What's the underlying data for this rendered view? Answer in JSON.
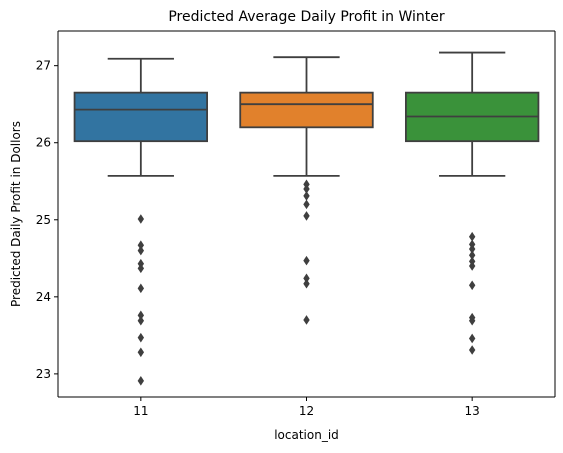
{
  "chart_data": {
    "type": "box",
    "title": "Predicted Average Daily Profit in Winter",
    "xlabel": "location_id",
    "ylabel": "Predicted Daily Profit in Dollors",
    "categories": [
      "11",
      "12",
      "13"
    ],
    "ylim": [
      22.7,
      27.45
    ],
    "yticks": [
      23,
      24,
      25,
      26,
      27
    ],
    "grid": false,
    "legend": "none",
    "boxes": [
      {
        "category": "11",
        "color": "#3274a1",
        "whisker_low": 25.57,
        "q1": 26.02,
        "median": 26.43,
        "q3": 26.65,
        "whisker_high": 27.09,
        "outliers": [
          25.01,
          24.67,
          24.6,
          24.43,
          24.37,
          24.11,
          23.76,
          23.69,
          23.47,
          23.28,
          22.91
        ]
      },
      {
        "category": "12",
        "color": "#e1812c",
        "whisker_low": 25.57,
        "q1": 26.2,
        "median": 26.5,
        "q3": 26.65,
        "whisker_high": 27.11,
        "outliers": [
          25.46,
          25.4,
          25.31,
          25.2,
          25.05,
          24.47,
          24.24,
          24.17,
          23.7
        ]
      },
      {
        "category": "13",
        "color": "#3a923a",
        "whisker_low": 25.57,
        "q1": 26.02,
        "median": 26.34,
        "q3": 26.65,
        "whisker_high": 27.17,
        "outliers": [
          24.78,
          24.68,
          24.62,
          24.54,
          24.46,
          24.4,
          24.15,
          23.73,
          23.69,
          23.46,
          23.31
        ]
      }
    ]
  }
}
